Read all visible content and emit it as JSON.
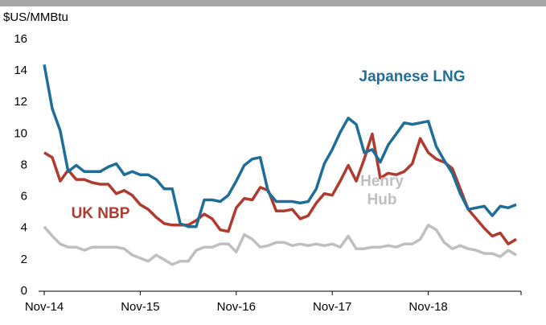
{
  "chart_data": {
    "type": "line",
    "ylabel": "$US/MMBtu",
    "categories": [
      "Nov-14",
      null,
      null,
      null,
      null,
      null,
      null,
      null,
      null,
      null,
      null,
      null,
      "Nov-15",
      null,
      null,
      null,
      null,
      null,
      null,
      null,
      null,
      null,
      null,
      null,
      "Nov-16",
      null,
      null,
      null,
      null,
      null,
      null,
      null,
      null,
      null,
      null,
      null,
      "Nov-17",
      null,
      null,
      null,
      null,
      null,
      null,
      null,
      null,
      null,
      null,
      null,
      "Nov-18",
      null,
      null,
      null,
      null,
      null,
      null,
      null,
      null,
      null,
      null,
      null
    ],
    "ylim": [
      0,
      16
    ],
    "yticks": [
      0,
      2,
      4,
      6,
      8,
      10,
      12,
      14,
      16
    ],
    "series": [
      {
        "name": "Henry Hub",
        "color": "#bfbfbf",
        "values": [
          4.1,
          3.5,
          3.0,
          2.8,
          2.8,
          2.6,
          2.8,
          2.8,
          2.8,
          2.8,
          2.7,
          2.3,
          2.1,
          1.9,
          2.3,
          2.0,
          1.7,
          1.9,
          1.9,
          2.6,
          2.8,
          2.8,
          3.0,
          3.0,
          2.5,
          3.6,
          3.3,
          2.8,
          2.9,
          3.1,
          3.1,
          2.9,
          3.0,
          2.9,
          3.0,
          2.9,
          3.0,
          2.8,
          3.5,
          2.7,
          2.7,
          2.8,
          2.8,
          2.9,
          2.8,
          3.0,
          3.0,
          3.3,
          4.2,
          3.9,
          3.1,
          2.7,
          2.9,
          2.7,
          2.6,
          2.4,
          2.4,
          2.2,
          2.6,
          2.3
        ]
      },
      {
        "name": "UK NBP",
        "color": "#b03a2e",
        "values": [
          8.8,
          8.5,
          7.0,
          7.7,
          7.1,
          7.1,
          6.9,
          6.8,
          6.8,
          6.2,
          6.4,
          6.1,
          5.5,
          5.2,
          4.7,
          4.3,
          4.2,
          4.2,
          4.2,
          4.5,
          4.9,
          4.6,
          3.9,
          3.8,
          5.3,
          5.9,
          5.8,
          6.6,
          6.4,
          5.1,
          5.1,
          5.2,
          4.6,
          4.8,
          5.6,
          6.2,
          6.1,
          7.0,
          8.0,
          7.0,
          8.4,
          10.0,
          7.2,
          7.5,
          7.4,
          7.6,
          8.1,
          9.7,
          8.8,
          8.4,
          8.2,
          7.8,
          6.5,
          5.2,
          4.6,
          4.0,
          3.5,
          3.7,
          3.0,
          3.3
        ]
      },
      {
        "name": "Japanese LNG",
        "color": "#1f6e9a",
        "values": [
          14.4,
          11.6,
          10.2,
          7.6,
          8.0,
          7.6,
          7.6,
          7.6,
          7.9,
          8.1,
          7.4,
          7.6,
          7.4,
          7.4,
          7.1,
          6.5,
          6.5,
          4.3,
          4.1,
          4.1,
          5.8,
          5.8,
          5.7,
          6.1,
          7.0,
          8.0,
          8.4,
          8.5,
          6.3,
          5.7,
          5.7,
          5.7,
          5.6,
          5.7,
          6.5,
          8.1,
          9.0,
          10.1,
          11.0,
          10.6,
          8.8,
          9.0,
          8.2,
          9.3,
          10.0,
          10.7,
          10.6,
          10.7,
          10.8,
          9.2,
          8.3,
          7.5,
          6.2,
          5.2,
          5.3,
          5.4,
          4.8,
          5.4,
          5.3,
          5.5
        ]
      }
    ]
  }
}
